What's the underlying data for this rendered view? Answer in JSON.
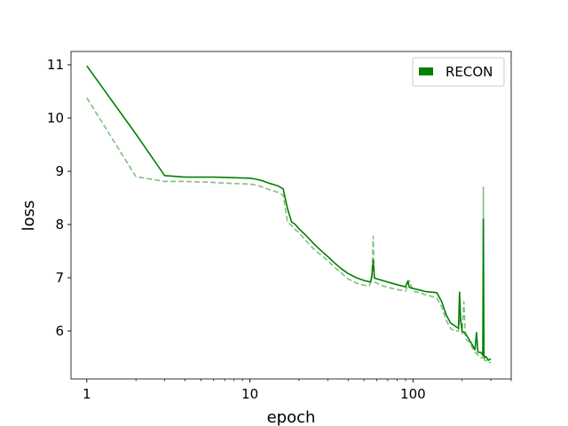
{
  "chart_data": {
    "type": "line",
    "xlabel": "epoch",
    "ylabel": "loss",
    "xscale": "log",
    "xlim": [
      0.8,
      400
    ],
    "ylim": [
      5.1,
      11.25
    ],
    "x_ticks": [
      1,
      10,
      100
    ],
    "x_tick_labels": [
      "1",
      "10",
      "100"
    ],
    "y_ticks": [
      6,
      7,
      8,
      9,
      10,
      11
    ],
    "y_tick_labels": [
      "6",
      "7",
      "8",
      "9",
      "10",
      "11"
    ],
    "grid": false,
    "legend_position": "top-right",
    "legend": [
      "RECON"
    ],
    "colors": {
      "train": "#008000",
      "val": "#7fbf7f"
    },
    "series": [
      {
        "name": "RECON",
        "style": "solid",
        "x": [
          1,
          2,
          3,
          4,
          6,
          8,
          10,
          11,
          12,
          13,
          14,
          15,
          16,
          17,
          18,
          19,
          20,
          22,
          25,
          28,
          30,
          33,
          36,
          40,
          45,
          50,
          55,
          56,
          57,
          58,
          60,
          65,
          70,
          80,
          90,
          93,
          95,
          100,
          110,
          120,
          130,
          140,
          150,
          160,
          170,
          180,
          190,
          193,
          196,
          200,
          210,
          220,
          230,
          240,
          245,
          250,
          260,
          268,
          270,
          272,
          275,
          280,
          290,
          300
        ],
        "y": [
          10.98,
          9.7,
          8.92,
          8.89,
          8.89,
          8.88,
          8.87,
          8.85,
          8.82,
          8.78,
          8.75,
          8.72,
          8.67,
          8.3,
          8.05,
          8.0,
          7.92,
          7.8,
          7.62,
          7.48,
          7.4,
          7.28,
          7.18,
          7.08,
          7.0,
          6.95,
          6.92,
          7.05,
          7.32,
          7.0,
          6.98,
          6.95,
          6.92,
          6.87,
          6.83,
          6.94,
          6.82,
          6.8,
          6.77,
          6.74,
          6.73,
          6.72,
          6.55,
          6.3,
          6.15,
          6.1,
          6.05,
          6.73,
          6.2,
          6.0,
          5.95,
          5.85,
          5.75,
          5.65,
          5.97,
          5.6,
          5.6,
          5.55,
          8.1,
          5.55,
          5.5,
          5.52,
          5.45,
          5.48
        ]
      },
      {
        "name": "",
        "style": "dashed",
        "x": [
          1,
          2,
          3,
          4,
          6,
          8,
          10,
          11,
          12,
          13,
          14,
          15,
          16,
          17,
          18,
          19,
          20,
          22,
          25,
          28,
          30,
          33,
          36,
          40,
          45,
          50,
          54,
          56,
          57,
          58,
          60,
          65,
          70,
          80,
          90,
          95,
          100,
          110,
          120,
          130,
          140,
          150,
          160,
          170,
          180,
          190,
          194,
          200,
          205,
          210,
          220,
          230,
          240,
          250,
          260,
          268,
          270,
          272,
          275,
          280,
          290,
          300
        ],
        "y": [
          10.38,
          8.9,
          8.81,
          8.81,
          8.79,
          8.77,
          8.76,
          8.74,
          8.7,
          8.66,
          8.63,
          8.6,
          8.55,
          8.05,
          7.98,
          7.9,
          7.85,
          7.7,
          7.52,
          7.4,
          7.32,
          7.2,
          7.1,
          6.98,
          6.9,
          6.86,
          6.85,
          7.0,
          7.78,
          6.92,
          6.9,
          6.85,
          6.82,
          6.78,
          6.75,
          6.95,
          6.75,
          6.72,
          6.68,
          6.65,
          6.62,
          6.45,
          6.2,
          6.05,
          6.0,
          6.0,
          6.35,
          5.95,
          6.55,
          5.85,
          5.8,
          5.7,
          5.6,
          5.55,
          5.5,
          5.5,
          8.7,
          5.5,
          5.45,
          5.45,
          5.4,
          5.42
        ]
      }
    ]
  }
}
